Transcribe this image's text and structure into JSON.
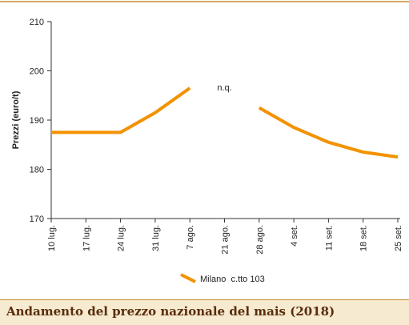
{
  "caption": {
    "title": "Andamento del prezzo nazionale del mais (2018)"
  },
  "colors": {
    "series": "#f39200",
    "top_rule": "#c98a2e",
    "caption_bg": "#f6ead0",
    "caption_text": "#5a2d0c"
  },
  "chart_data": {
    "type": "line",
    "title": "",
    "xlabel": "",
    "ylabel": "Prezzi (euro/t)",
    "ylim": [
      170,
      210
    ],
    "yticks": [
      170,
      180,
      190,
      200,
      210
    ],
    "categories": [
      "10 lug.",
      "17 lug.",
      "24 lug.",
      "31 lug.",
      "7 ago.",
      "21 ago.",
      "28 ago.",
      "4 set.",
      "11 set.",
      "18 set.",
      "25 set."
    ],
    "series": [
      {
        "name": "Milano  c.tto 103",
        "values": [
          187.5,
          187.5,
          187.5,
          191.5,
          196.5,
          null,
          192.5,
          188.5,
          185.5,
          183.5,
          182.5
        ]
      }
    ],
    "annotations": [
      {
        "text": "n.q.",
        "category": "21 ago."
      }
    ],
    "grid": {
      "vertical": false,
      "horizontal": false
    },
    "legend": "bottom-center"
  }
}
